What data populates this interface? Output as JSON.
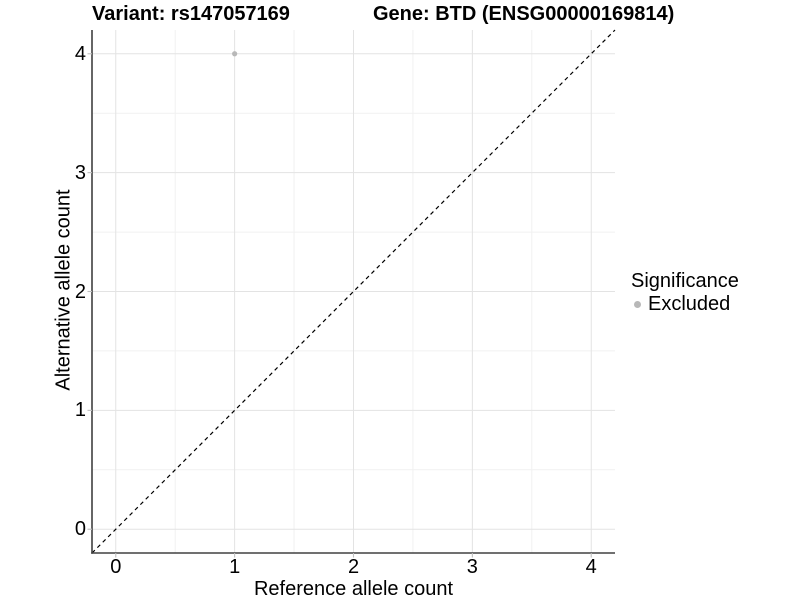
{
  "chart_data": {
    "type": "scatter",
    "title_left": "Variant: rs147057169",
    "title_right": "Gene: BTD (ENSG00000169814)",
    "xlabel": "Reference allele count",
    "ylabel": "Alternative allele count",
    "xlim": [
      -0.2,
      4.2
    ],
    "ylim": [
      -0.2,
      4.2
    ],
    "xticks": [
      "0",
      "1",
      "2",
      "3",
      "4"
    ],
    "yticks": [
      "0",
      "1",
      "2",
      "3",
      "4"
    ],
    "xticks_minor": [
      0.5,
      1.5,
      2.5,
      3.5
    ],
    "yticks_minor": [
      0.5,
      1.5,
      2.5,
      3.5
    ],
    "grid": "major+minor",
    "points": [
      {
        "x": 1,
        "y": 4,
        "significance": "Excluded"
      }
    ],
    "point_radius": 2.6,
    "reference_line": {
      "kind": "identity y=x",
      "style": "dashed",
      "from": [
        -0.2,
        -0.2
      ],
      "to": [
        4.2,
        4.2
      ]
    },
    "legend": {
      "title": "Significance",
      "position": "right",
      "entries": [
        {
          "label": "Excluded",
          "color": "#b8b8b8",
          "marker": "circle"
        }
      ]
    },
    "colors": {
      "point": "#b8b8b8",
      "grid_major": "#e3e3e3",
      "grid_minor": "#f1f1f1",
      "axis_line": "#404040",
      "tick_mark": "#bfbfbf",
      "dashed_line": "#000000",
      "text": "#000000",
      "background": "#ffffff"
    }
  }
}
